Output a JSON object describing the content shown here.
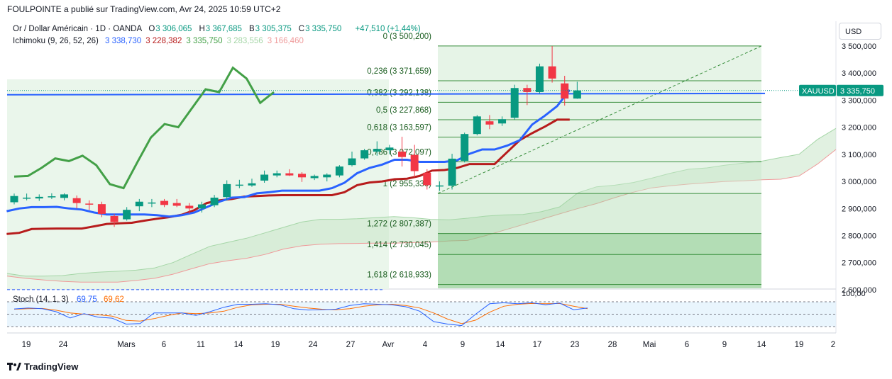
{
  "header": {
    "published_line": "FOULPOINTE a publié sur TradingView.com, Avr 24, 2025 10:59 UTC+2"
  },
  "legend": {
    "symbol_line": "Or / Dollar Américain · 1D · OANDA",
    "ohlc": [
      {
        "key": "O",
        "value": "3 306,065"
      },
      {
        "key": "H",
        "value": "3 367,685"
      },
      {
        "key": "B",
        "value": "3 305,375"
      },
      {
        "key": "C",
        "value": "3 335,750"
      }
    ],
    "change": "+47,510 (+1,44%)",
    "ichimoku_label": "Ichimoku (9, 26, 52, 26)",
    "ichimoku_values": [
      {
        "value": "3 338,730",
        "color": "#2962ff"
      },
      {
        "value": "3 228,382",
        "color": "#b71c1c"
      },
      {
        "value": "3 335,750",
        "color": "#43a047"
      },
      {
        "value": "3 283,556",
        "color": "#a5d6a7"
      },
      {
        "value": "3 166,460",
        "color": "#ef9a9a"
      }
    ]
  },
  "currency_button": "USD",
  "price_tag": {
    "symbol": "XAUUSD",
    "value": "3 335,750"
  },
  "stoch": {
    "label": "Stoch (14, 1, 3)",
    "k": "69,75",
    "d": "69,62",
    "top_label": "100,00"
  },
  "brand": "TradingView",
  "colors": {
    "up": "#089981",
    "down": "#f23645",
    "tenkan": "#2962ff",
    "kijun": "#b71c1c",
    "chikou": "#43a047",
    "fib": "#388e3c",
    "cloud": "#c8e6c9"
  },
  "chart_data": {
    "type": "candlestick",
    "title": "Or / Dollar Américain · 1D · OANDA",
    "y_axis_ticks": [
      "3 500,000",
      "3 400,000",
      "3 300,000",
      "3 200,000",
      "3 100,000",
      "3 000,000",
      "2 900,000",
      "2 800,000",
      "2 700,000",
      "2 600,000"
    ],
    "y_tick_values": [
      3500,
      3400,
      3300,
      3200,
      3100,
      3000,
      2900,
      2800,
      2700,
      2600
    ],
    "ylim": [
      2565,
      3555
    ],
    "x_axis_labels": [
      "19",
      "24",
      "Mars",
      "6",
      "11",
      "14",
      "19",
      "24",
      "27",
      "Avr",
      "4",
      "9",
      "14",
      "17",
      "23",
      "28",
      "Mai",
      "6",
      "9",
      "14",
      "19",
      "2"
    ],
    "fibonacci_levels": [
      {
        "label": "0 (3 500,200)",
        "value": 3500.2
      },
      {
        "label": "0,236 (3 371,659)",
        "value": 3371.659
      },
      {
        "label": "0,382 (3 292,138)",
        "value": 3292.138
      },
      {
        "label": "0,5 (3 227,868)",
        "value": 3227.868
      },
      {
        "label": "0,618 (3 163,597)",
        "value": 3163.597
      },
      {
        "label": "0,786 (3 072,097)",
        "value": 3072.097
      },
      {
        "label": "1 (2 955,336)",
        "value": 2955.336
      },
      {
        "label": "1,272 (2 807,387)",
        "value": 2807.387
      },
      {
        "label": "1,414 (2 730,045)",
        "value": 2730.045
      },
      {
        "label": "1,618 (2 618,933)",
        "value": 2618.933
      }
    ],
    "candles": [
      {
        "o": 2923,
        "h": 2955,
        "l": 2915,
        "c": 2946
      },
      {
        "o": 2939,
        "h": 2955,
        "l": 2930,
        "c": 2940
      },
      {
        "o": 2937,
        "h": 2952,
        "l": 2928,
        "c": 2943
      },
      {
        "o": 2941,
        "h": 2956,
        "l": 2935,
        "c": 2945
      },
      {
        "o": 2939,
        "h": 2956,
        "l": 2930,
        "c": 2952
      },
      {
        "o": 2938,
        "h": 2948,
        "l": 2900,
        "c": 2920
      },
      {
        "o": 2918,
        "h": 2930,
        "l": 2895,
        "c": 2916
      },
      {
        "o": 2916,
        "h": 2925,
        "l": 2868,
        "c": 2880
      },
      {
        "o": 2872,
        "h": 2880,
        "l": 2832,
        "c": 2850
      },
      {
        "o": 2860,
        "h": 2905,
        "l": 2855,
        "c": 2895
      },
      {
        "o": 2908,
        "h": 2935,
        "l": 2890,
        "c": 2925
      },
      {
        "o": 2922,
        "h": 2935,
        "l": 2905,
        "c": 2922
      },
      {
        "o": 2928,
        "h": 2935,
        "l": 2905,
        "c": 2913
      },
      {
        "o": 2920,
        "h": 2935,
        "l": 2905,
        "c": 2910
      },
      {
        "o": 2910,
        "h": 2920,
        "l": 2880,
        "c": 2900
      },
      {
        "o": 2900,
        "h": 2925,
        "l": 2885,
        "c": 2915
      },
      {
        "o": 2912,
        "h": 2950,
        "l": 2905,
        "c": 2940
      },
      {
        "o": 2942,
        "h": 3004,
        "l": 2930,
        "c": 2990
      },
      {
        "o": 2985,
        "h": 3006,
        "l": 2975,
        "c": 2988
      },
      {
        "o": 2985,
        "h": 3010,
        "l": 2980,
        "c": 2993
      },
      {
        "o": 3003,
        "h": 3040,
        "l": 2995,
        "c": 3025
      },
      {
        "o": 3022,
        "h": 3040,
        "l": 3015,
        "c": 3030
      },
      {
        "o": 3030,
        "h": 3045,
        "l": 3020,
        "c": 3022
      },
      {
        "o": 3028,
        "h": 3034,
        "l": 2998,
        "c": 3015
      },
      {
        "o": 3012,
        "h": 3025,
        "l": 3005,
        "c": 3020
      },
      {
        "o": 3015,
        "h": 3030,
        "l": 3000,
        "c": 3025
      },
      {
        "o": 3022,
        "h": 3060,
        "l": 3015,
        "c": 3055
      },
      {
        "o": 3060,
        "h": 3110,
        "l": 3055,
        "c": 3085
      },
      {
        "o": 3085,
        "h": 3120,
        "l": 3080,
        "c": 3115
      },
      {
        "o": 3110,
        "h": 3148,
        "l": 3095,
        "c": 3120
      },
      {
        "o": 3115,
        "h": 3135,
        "l": 3100,
        "c": 3125
      },
      {
        "o": 3110,
        "h": 3165,
        "l": 3055,
        "c": 3090
      },
      {
        "o": 3098,
        "h": 3135,
        "l": 3015,
        "c": 3038
      },
      {
        "o": 3032,
        "h": 3045,
        "l": 2970,
        "c": 2986
      },
      {
        "o": 2982,
        "h": 3000,
        "l": 2965,
        "c": 2985
      },
      {
        "o": 2984,
        "h": 3102,
        "l": 2970,
        "c": 3084
      },
      {
        "o": 3076,
        "h": 3180,
        "l": 3070,
        "c": 3175
      },
      {
        "o": 3175,
        "h": 3245,
        "l": 3170,
        "c": 3240
      },
      {
        "o": 3222,
        "h": 3245,
        "l": 3193,
        "c": 3210
      },
      {
        "o": 3214,
        "h": 3240,
        "l": 3205,
        "c": 3230
      },
      {
        "o": 3235,
        "h": 3357,
        "l": 3229,
        "c": 3345
      },
      {
        "o": 3345,
        "h": 3357,
        "l": 3282,
        "c": 3330
      },
      {
        "o": 3330,
        "h": 3435,
        "l": 3325,
        "c": 3425
      },
      {
        "o": 3425,
        "h": 3500,
        "l": 3365,
        "c": 3380
      },
      {
        "o": 3362,
        "h": 3390,
        "l": 3280,
        "c": 3306
      },
      {
        "o": 3306,
        "h": 3368,
        "l": 3305,
        "c": 3336
      }
    ],
    "tenkan": [
      2890,
      2900,
      2905,
      2905,
      2906,
      2900,
      2896,
      2885,
      2878,
      2878,
      2878,
      2878,
      2875,
      2870,
      2875,
      2885,
      2905,
      2925,
      2940,
      2942,
      2956,
      2960,
      2966,
      2966,
      2966,
      2966,
      2975,
      2995,
      3030,
      3050,
      3062,
      3080,
      3080,
      3072,
      3072,
      3072,
      3078,
      3102,
      3118,
      3118,
      3132,
      3152,
      3210,
      3242,
      3278,
      3338
    ],
    "kijun": [
      2806,
      2810,
      2824,
      2825,
      2826,
      2826,
      2826,
      2834,
      2843,
      2845,
      2847,
      2855,
      2862,
      2868,
      2877,
      2894,
      2920,
      2930,
      2935,
      2944,
      2946,
      2948,
      2949,
      2949,
      2949,
      2949,
      2949,
      2960,
      2986,
      2996,
      3000,
      3008,
      3010,
      3020,
      3040,
      3042,
      3050,
      3064,
      3064,
      3064,
      3108,
      3152,
      3178,
      3202,
      3228,
      3228
    ],
    "chikou": [
      3018,
      3020,
      3050,
      3085,
      3075,
      3095,
      3060,
      2990,
      2975,
      3070,
      3162,
      3212,
      3200,
      3270,
      3340,
      3330,
      3420,
      3380,
      3290,
      3330
    ],
    "cloud_a": [
      2660,
      2650,
      2650,
      2652,
      2660,
      2665,
      2668,
      2672,
      2680,
      2700,
      2730,
      2760,
      2775,
      2790,
      2810,
      2830,
      2850,
      2860,
      2860,
      2862,
      2866,
      2870,
      2866,
      2860,
      2858,
      2864,
      2872,
      2876,
      2878,
      2888,
      2906,
      2958,
      2980,
      2986,
      2996,
      3012,
      3030,
      3045,
      3050,
      3060,
      3068,
      3075,
      3088,
      3100,
      3155,
      3196
    ],
    "cloud_b": [
      2650,
      2642,
      2636,
      2631,
      2628,
      2628,
      2628,
      2634,
      2642,
      2657,
      2677,
      2696,
      2707,
      2716,
      2730,
      2750,
      2762,
      2768,
      2770,
      2771,
      2772,
      2772,
      2774,
      2776,
      2780,
      2782,
      2800,
      2820,
      2840,
      2860,
      2880,
      2900,
      2918,
      2940,
      2960,
      2976,
      2984,
      2990,
      2995,
      3000,
      3002,
      3006,
      3008,
      3020,
      3064,
      3118
    ],
    "stoch_k": [
      71,
      75,
      72,
      60,
      35,
      52,
      38,
      34,
      10,
      12,
      55,
      55,
      55,
      45,
      60,
      78,
      90,
      90,
      92,
      88,
      72,
      67,
      68,
      70,
      85,
      92,
      90,
      88,
      80,
      62,
      20,
      10,
      4,
      50,
      92,
      96,
      92,
      96,
      88,
      95,
      68,
      75
    ],
    "stoch_d": [
      70,
      72,
      73,
      66,
      55,
      50,
      48,
      42,
      25,
      22,
      32,
      45,
      55,
      52,
      55,
      62,
      78,
      88,
      90,
      90,
      82,
      75,
      70,
      68,
      72,
      82,
      88,
      90,
      85,
      75,
      55,
      30,
      12,
      26,
      58,
      82,
      90,
      93,
      92,
      93,
      82,
      72
    ]
  }
}
